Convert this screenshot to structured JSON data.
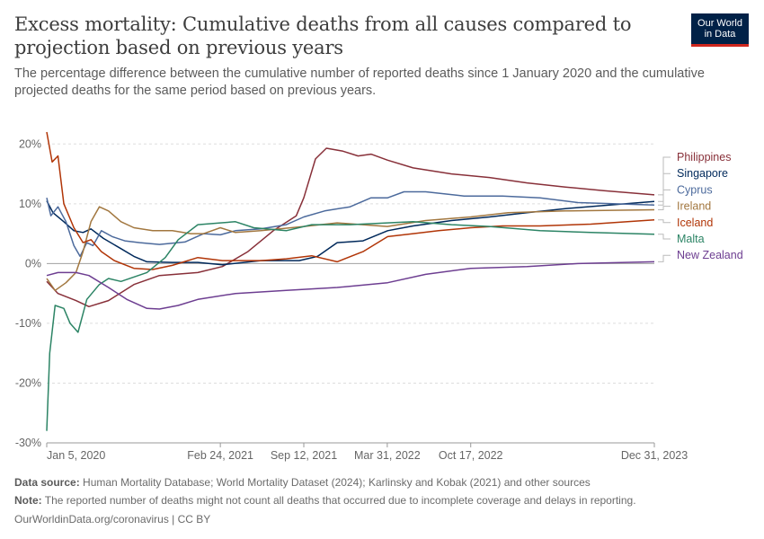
{
  "header": {
    "title": "Excess mortality: Cumulative deaths from all causes compared to projection based on previous years",
    "subtitle": "The percentage difference between the cumulative number of reported deaths since 1 January 2020 and the cumulative projected deaths for the same period based on previous years.",
    "logo_line1": "Our World",
    "logo_line2": "in Data"
  },
  "footer": {
    "source_label": "Data source:",
    "source_text": "Human Mortality Database; World Mortality Dataset (2024); Karlinsky and Kobak (2021) and other sources",
    "note_label": "Note:",
    "note_text": "The reported number of deaths might not count all deaths that occurred due to incomplete coverage and delays in reporting.",
    "credit": "OurWorldinData.org/coronavirus | CC BY"
  },
  "chart_data": {
    "type": "line",
    "title": "Excess mortality: Cumulative deaths from all causes compared to projection based on previous years",
    "ylabel": "",
    "ylim": [
      -30,
      22
    ],
    "yticks": [
      -30,
      -20,
      -10,
      0,
      10,
      20
    ],
    "ytick_labels": [
      "-30%",
      "-20%",
      "-10%",
      "0%",
      "10%",
      "20%"
    ],
    "xticks": [
      "2020-01-05",
      "2021-02-24",
      "2021-09-12",
      "2022-03-31",
      "2022-10-17",
      "2023-12-31"
    ],
    "xtick_labels": [
      "Jan 5, 2020",
      "Feb 24, 2021",
      "Sep 12, 2021",
      "Mar 31, 2022",
      "Oct 17, 2022",
      "Dec 31, 2023"
    ],
    "xlim": [
      "2020-01-05",
      "2023-12-31"
    ],
    "grid": "horizontal dashed",
    "legend": "right",
    "series": [
      {
        "name": "Philippines",
        "color": "#883039",
        "points": [
          [
            "2020-01-05",
            -3
          ],
          [
            "2020-02-01",
            -5
          ],
          [
            "2020-03-15",
            -6.2
          ],
          [
            "2020-04-15",
            -7.2
          ],
          [
            "2020-06-01",
            -6.2
          ],
          [
            "2020-08-01",
            -3.5
          ],
          [
            "2020-10-01",
            -2
          ],
          [
            "2021-01-01",
            -1.5
          ],
          [
            "2021-03-01",
            -0.5
          ],
          [
            "2021-05-01",
            2
          ],
          [
            "2021-07-01",
            5.5
          ],
          [
            "2021-08-25",
            8
          ],
          [
            "2021-09-12",
            11
          ],
          [
            "2021-10-10",
            17.5
          ],
          [
            "2021-11-05",
            19.3
          ],
          [
            "2021-12-15",
            18.8
          ],
          [
            "2022-01-20",
            18
          ],
          [
            "2022-02-20",
            18.3
          ],
          [
            "2022-04-01",
            17.3
          ],
          [
            "2022-06-01",
            16
          ],
          [
            "2022-09-01",
            15
          ],
          [
            "2022-12-01",
            14.4
          ],
          [
            "2023-03-01",
            13.5
          ],
          [
            "2023-06-01",
            12.8
          ],
          [
            "2023-09-01",
            12.2
          ],
          [
            "2023-12-31",
            11.5
          ]
        ]
      },
      {
        "name": "Singapore",
        "color": "#00295b",
        "points": [
          [
            "2020-01-05",
            10.5
          ],
          [
            "2020-01-20",
            8.5
          ],
          [
            "2020-02-15",
            7
          ],
          [
            "2020-03-10",
            5.5
          ],
          [
            "2020-04-01",
            5.2
          ],
          [
            "2020-04-20",
            5.8
          ],
          [
            "2020-05-20",
            4.2
          ],
          [
            "2020-07-01",
            2.5
          ],
          [
            "2020-08-01",
            1.2
          ],
          [
            "2020-09-01",
            0.3
          ],
          [
            "2020-11-01",
            0.2
          ],
          [
            "2021-01-01",
            0.2
          ],
          [
            "2021-03-01",
            -0.2
          ],
          [
            "2021-06-01",
            0.5
          ],
          [
            "2021-09-01",
            0.5
          ],
          [
            "2021-10-15",
            1.2
          ],
          [
            "2021-12-01",
            3.5
          ],
          [
            "2022-02-01",
            3.8
          ],
          [
            "2022-04-01",
            5.5
          ],
          [
            "2022-06-01",
            6.3
          ],
          [
            "2022-09-01",
            7.2
          ],
          [
            "2022-12-01",
            7.8
          ],
          [
            "2023-03-01",
            8.5
          ],
          [
            "2023-06-01",
            9.2
          ],
          [
            "2023-09-01",
            9.7
          ],
          [
            "2023-12-31",
            10.4
          ]
        ]
      },
      {
        "name": "Cyprus",
        "color": "#4c6a9c",
        "points": [
          [
            "2020-01-05",
            11
          ],
          [
            "2020-01-15",
            8
          ],
          [
            "2020-02-01",
            9.5
          ],
          [
            "2020-02-20",
            7
          ],
          [
            "2020-03-10",
            3
          ],
          [
            "2020-03-25",
            1.2
          ],
          [
            "2020-04-10",
            3.5
          ],
          [
            "2020-04-25",
            3
          ],
          [
            "2020-05-15",
            5.5
          ],
          [
            "2020-06-10",
            4.5
          ],
          [
            "2020-07-10",
            3.8
          ],
          [
            "2020-08-15",
            3.5
          ],
          [
            "2020-10-01",
            3.2
          ],
          [
            "2020-12-01",
            3.6
          ],
          [
            "2021-01-15",
            5
          ],
          [
            "2021-02-24",
            4.8
          ],
          [
            "2021-04-01",
            5.5
          ],
          [
            "2021-06-01",
            5.8
          ],
          [
            "2021-08-01",
            6.5
          ],
          [
            "2021-09-12",
            7.8
          ],
          [
            "2021-11-01",
            8.8
          ],
          [
            "2022-01-01",
            9.5
          ],
          [
            "2022-02-20",
            11
          ],
          [
            "2022-04-01",
            11
          ],
          [
            "2022-05-10",
            12
          ],
          [
            "2022-07-01",
            12
          ],
          [
            "2022-10-01",
            11.3
          ],
          [
            "2023-01-01",
            11.3
          ],
          [
            "2023-04-01",
            11
          ],
          [
            "2023-07-01",
            10.2
          ],
          [
            "2023-12-31",
            9.8
          ]
        ]
      },
      {
        "name": "Ireland",
        "color": "#a2773f",
        "points": [
          [
            "2020-01-05",
            -2.5
          ],
          [
            "2020-01-25",
            -4.5
          ],
          [
            "2020-02-20",
            -3.2
          ],
          [
            "2020-03-15",
            -1.5
          ],
          [
            "2020-04-01",
            2
          ],
          [
            "2020-04-20",
            7
          ],
          [
            "2020-05-10",
            9.5
          ],
          [
            "2020-06-01",
            8.8
          ],
          [
            "2020-07-01",
            7
          ],
          [
            "2020-08-01",
            6
          ],
          [
            "2020-09-15",
            5.5
          ],
          [
            "2020-11-01",
            5.5
          ],
          [
            "2020-12-15",
            5
          ],
          [
            "2021-01-15",
            5
          ],
          [
            "2021-02-24",
            6
          ],
          [
            "2021-04-01",
            5.2
          ],
          [
            "2021-06-01",
            5.5
          ],
          [
            "2021-09-12",
            6.2
          ],
          [
            "2021-12-01",
            6.8
          ],
          [
            "2022-03-31",
            6.2
          ],
          [
            "2022-07-01",
            7.2
          ],
          [
            "2022-10-17",
            7.8
          ],
          [
            "2023-01-15",
            8.5
          ],
          [
            "2023-06-01",
            8.8
          ],
          [
            "2023-12-31",
            9
          ]
        ]
      },
      {
        "name": "Iceland",
        "color": "#b13507",
        "points": [
          [
            "2020-01-05",
            22
          ],
          [
            "2020-01-18",
            17
          ],
          [
            "2020-02-01",
            18
          ],
          [
            "2020-02-15",
            10
          ],
          [
            "2020-03-10",
            6
          ],
          [
            "2020-04-01",
            3.5
          ],
          [
            "2020-04-20",
            4
          ],
          [
            "2020-05-15",
            2
          ],
          [
            "2020-06-15",
            0.5
          ],
          [
            "2020-08-01",
            -0.8
          ],
          [
            "2020-09-15",
            -1
          ],
          [
            "2020-11-01",
            -0.3
          ],
          [
            "2021-01-01",
            1
          ],
          [
            "2021-03-01",
            0.5
          ],
          [
            "2021-06-01",
            0.5
          ],
          [
            "2021-08-01",
            0.8
          ],
          [
            "2021-10-01",
            1.3
          ],
          [
            "2021-12-01",
            0.3
          ],
          [
            "2022-02-01",
            2
          ],
          [
            "2022-04-01",
            4.5
          ],
          [
            "2022-06-01",
            5
          ],
          [
            "2022-08-01",
            5.5
          ],
          [
            "2022-10-17",
            6
          ],
          [
            "2023-01-01",
            6.3
          ],
          [
            "2023-04-01",
            6.3
          ],
          [
            "2023-08-01",
            6.6
          ],
          [
            "2023-12-31",
            7.3
          ]
        ]
      },
      {
        "name": "Malta",
        "color": "#2c8465",
        "points": [
          [
            "2020-01-05",
            -28
          ],
          [
            "2020-01-12",
            -15
          ],
          [
            "2020-01-25",
            -7
          ],
          [
            "2020-02-15",
            -7.5
          ],
          [
            "2020-03-01",
            -10
          ],
          [
            "2020-03-20",
            -11.5
          ],
          [
            "2020-04-10",
            -6
          ],
          [
            "2020-05-10",
            -3.5
          ],
          [
            "2020-06-01",
            -2.5
          ],
          [
            "2020-07-01",
            -3
          ],
          [
            "2020-09-01",
            -1.5
          ],
          [
            "2020-10-15",
            1
          ],
          [
            "2020-11-15",
            4
          ],
          [
            "2021-01-01",
            6.5
          ],
          [
            "2021-02-24",
            6.8
          ],
          [
            "2021-04-01",
            7
          ],
          [
            "2021-05-15",
            6
          ],
          [
            "2021-08-01",
            5.5
          ],
          [
            "2021-10-01",
            6.5
          ],
          [
            "2022-01-01",
            6.5
          ],
          [
            "2022-03-31",
            6.8
          ],
          [
            "2022-06-01",
            7
          ],
          [
            "2022-09-01",
            6.5
          ],
          [
            "2022-12-01",
            6.2
          ],
          [
            "2023-04-01",
            5.5
          ],
          [
            "2023-08-01",
            5.2
          ],
          [
            "2023-12-31",
            4.9
          ]
        ]
      },
      {
        "name": "New Zealand",
        "color": "#6d3e91",
        "points": [
          [
            "2020-01-05",
            -2
          ],
          [
            "2020-02-01",
            -1.5
          ],
          [
            "2020-03-15",
            -1.5
          ],
          [
            "2020-04-15",
            -2
          ],
          [
            "2020-06-01",
            -4
          ],
          [
            "2020-07-15",
            -6
          ],
          [
            "2020-09-01",
            -7.5
          ],
          [
            "2020-10-01",
            -7.6
          ],
          [
            "2020-11-15",
            -7
          ],
          [
            "2021-01-01",
            -6
          ],
          [
            "2021-04-01",
            -5
          ],
          [
            "2021-08-01",
            -4.5
          ],
          [
            "2021-12-01",
            -4
          ],
          [
            "2022-04-01",
            -3.2
          ],
          [
            "2022-07-01",
            -1.8
          ],
          [
            "2022-10-17",
            -0.8
          ],
          [
            "2023-03-01",
            -0.5
          ],
          [
            "2023-07-01",
            0
          ],
          [
            "2023-12-31",
            0.3
          ]
        ]
      }
    ]
  }
}
